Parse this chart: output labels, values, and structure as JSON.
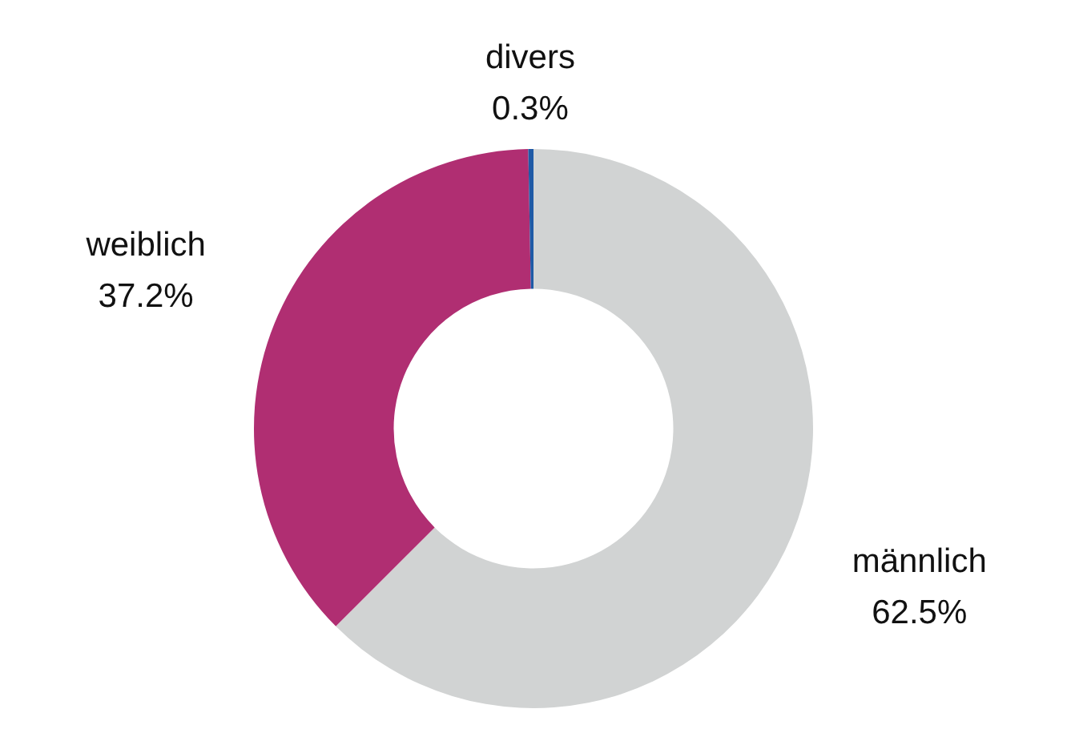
{
  "chart_data": {
    "type": "donut",
    "categories": [
      "männlich",
      "weiblich",
      "divers"
    ],
    "values": [
      62.5,
      37.2,
      0.3
    ],
    "colors": [
      "#d1d3d3",
      "#b02e72",
      "#1f5aa6"
    ],
    "value_labels": [
      "62.5%",
      "37.2%",
      "0.3%"
    ],
    "legend": false
  }
}
